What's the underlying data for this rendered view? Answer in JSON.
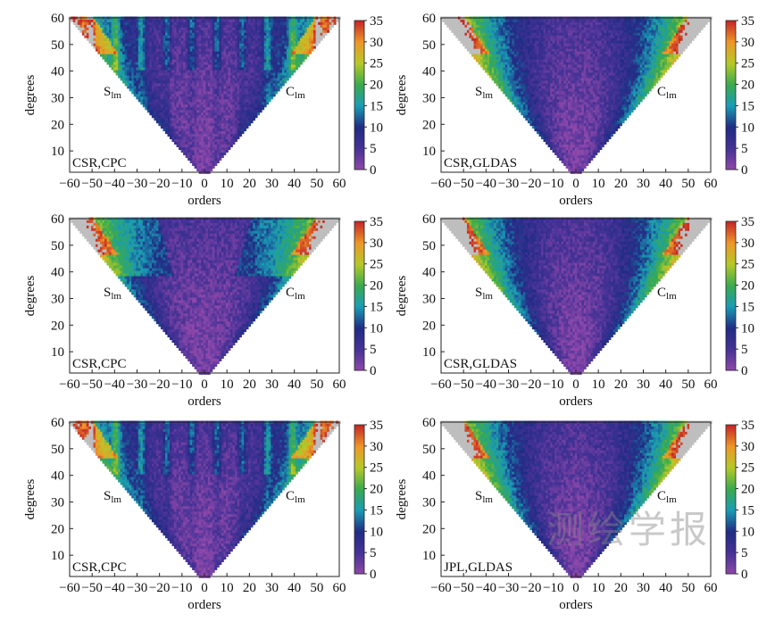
{
  "chart_data": [
    {
      "type": "heatmap",
      "panel_label": "CSR,CPC",
      "xlabel": "orders",
      "ylabel": "degrees",
      "left_region_label": "Slm",
      "right_region_label": "Clm",
      "xlim": [
        -60,
        60
      ],
      "ylim": [
        2,
        60
      ],
      "x_ticks": [
        -60,
        -50,
        -40,
        -30,
        -20,
        -10,
        0,
        10,
        20,
        30,
        40,
        50,
        60
      ],
      "y_ticks": [
        10,
        20,
        30,
        40,
        50,
        60
      ],
      "colorbar": {
        "min": 0,
        "max": 35,
        "ticks": [
          0,
          5,
          10,
          15,
          20,
          25,
          30,
          35
        ]
      },
      "pattern": "stripes"
    },
    {
      "type": "heatmap",
      "panel_label": "CSR,GLDAS",
      "xlabel": "orders",
      "ylabel": "degrees",
      "left_region_label": "Slm",
      "right_region_label": "Clm",
      "xlim": [
        -60,
        60
      ],
      "ylim": [
        2,
        60
      ],
      "x_ticks": [
        -60,
        -50,
        -40,
        -30,
        -20,
        -10,
        0,
        10,
        20,
        30,
        40,
        50,
        60
      ],
      "y_ticks": [
        10,
        20,
        30,
        40,
        50,
        60
      ],
      "colorbar": {
        "min": 0,
        "max": 35,
        "ticks": [
          0,
          5,
          10,
          15,
          20,
          25,
          30,
          35
        ]
      },
      "pattern": "wide"
    },
    {
      "type": "heatmap",
      "panel_label": "CSR,CPC",
      "xlabel": "orders",
      "ylabel": "degrees",
      "left_region_label": "Slm",
      "right_region_label": "Clm",
      "xlim": [
        -60,
        60
      ],
      "ylim": [
        2,
        60
      ],
      "x_ticks": [
        -60,
        -50,
        -40,
        -30,
        -20,
        -10,
        0,
        10,
        20,
        30,
        40,
        50,
        60
      ],
      "y_ticks": [
        10,
        20,
        30,
        40,
        50,
        60
      ],
      "colorbar": {
        "min": 0,
        "max": 35,
        "ticks": [
          0,
          5,
          10,
          15,
          20,
          25,
          30,
          35
        ]
      },
      "pattern": "band"
    },
    {
      "type": "heatmap",
      "panel_label": "CSR,GLDAS",
      "xlabel": "orders",
      "ylabel": "degrees",
      "left_region_label": "Slm",
      "right_region_label": "Clm",
      "xlim": [
        -60,
        60
      ],
      "ylim": [
        2,
        60
      ],
      "x_ticks": [
        -60,
        -50,
        -40,
        -30,
        -20,
        -10,
        0,
        10,
        20,
        30,
        40,
        50,
        60
      ],
      "y_ticks": [
        10,
        20,
        30,
        40,
        50,
        60
      ],
      "colorbar": {
        "min": 0,
        "max": 35,
        "ticks": [
          0,
          5,
          10,
          15,
          20,
          25,
          30,
          35
        ]
      },
      "pattern": "wide"
    },
    {
      "type": "heatmap",
      "panel_label": "CSR,CPC",
      "xlabel": "orders",
      "ylabel": "degrees",
      "left_region_label": "Slm",
      "right_region_label": "Clm",
      "xlim": [
        -60,
        60
      ],
      "ylim": [
        2,
        60
      ],
      "x_ticks": [
        -60,
        -50,
        -40,
        -30,
        -20,
        -10,
        0,
        10,
        20,
        30,
        40,
        50,
        60
      ],
      "y_ticks": [
        10,
        20,
        30,
        40,
        50,
        60
      ],
      "colorbar": {
        "min": 0,
        "max": 35,
        "ticks": [
          0,
          5,
          10,
          15,
          20,
          25,
          30,
          35
        ]
      },
      "pattern": "stripes"
    },
    {
      "type": "heatmap",
      "panel_label": "JPL,GLDAS",
      "xlabel": "orders",
      "ylabel": "degrees",
      "left_region_label": "Slm",
      "right_region_label": "Clm",
      "xlim": [
        -60,
        60
      ],
      "ylim": [
        2,
        60
      ],
      "x_ticks": [
        -60,
        -50,
        -40,
        -30,
        -20,
        -10,
        0,
        10,
        20,
        30,
        40,
        50,
        60
      ],
      "y_ticks": [
        10,
        20,
        30,
        40,
        50,
        60
      ],
      "colorbar": {
        "min": 0,
        "max": 35,
        "ticks": [
          0,
          5,
          10,
          15,
          20,
          25,
          30,
          35
        ]
      },
      "pattern": "wide"
    }
  ],
  "watermark": "测绘学报"
}
